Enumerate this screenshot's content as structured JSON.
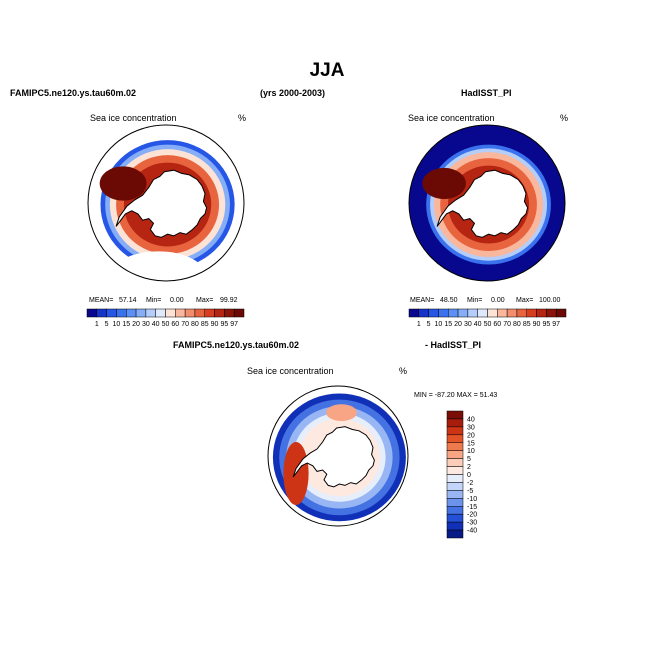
{
  "page": {
    "title": "JJA",
    "left_model": "FAMIPC5.ne120.ys.tau60m.02",
    "period": "(yrs 2000-2003)",
    "right_model": "HadISST_PI",
    "diff_left": "FAMIPC5.ne120.ys.tau60m.02",
    "diff_right": "- HadISST_PI"
  },
  "chart_data": [
    {
      "type": "heatmap",
      "id": "model",
      "title": "Sea ice concentration",
      "units": "%",
      "projection": "south-polar-stereographic",
      "stats": {
        "mean": "57.14",
        "min": "0.00",
        "max": "99.92"
      },
      "stats_labels": {
        "mean": "MEAN=",
        "min": "Min=",
        "max": "Max="
      },
      "colorbar": {
        "orientation": "horizontal",
        "levels": [
          "1",
          "5",
          "10",
          "15",
          "20",
          "30",
          "40",
          "50",
          "60",
          "70",
          "80",
          "85",
          "90",
          "95",
          "97"
        ],
        "colors": [
          "#08088f",
          "#1734c8",
          "#2656e6",
          "#3a72ee",
          "#5c90f4",
          "#86aef7",
          "#b4cdf9",
          "#dfe9fc",
          "#fde2d6",
          "#f9b89e",
          "#f28e6e",
          "#e8643f",
          "#d63e1f",
          "#b62412",
          "#8a1409",
          "#6b0a05"
        ]
      }
    },
    {
      "type": "heatmap",
      "id": "obs",
      "title": "Sea ice concentration",
      "units": "%",
      "projection": "south-polar-stereographic",
      "stats": {
        "mean": "48.50",
        "min": "0.00",
        "max": "100.00"
      },
      "stats_labels": {
        "mean": "MEAN=",
        "min": "Min=",
        "max": "Max="
      },
      "colorbar": {
        "orientation": "horizontal",
        "levels": [
          "1",
          "5",
          "10",
          "15",
          "20",
          "30",
          "40",
          "50",
          "60",
          "70",
          "80",
          "85",
          "90",
          "95",
          "97"
        ],
        "colors": [
          "#08088f",
          "#1734c8",
          "#2656e6",
          "#3a72ee",
          "#5c90f4",
          "#86aef7",
          "#b4cdf9",
          "#dfe9fc",
          "#fde2d6",
          "#f9b89e",
          "#f28e6e",
          "#e8643f",
          "#d63e1f",
          "#b62412",
          "#8a1409",
          "#6b0a05"
        ]
      }
    },
    {
      "type": "heatmap",
      "id": "diff",
      "title": "Sea ice concentration",
      "units": "%",
      "projection": "south-polar-stereographic",
      "range_label": "MIN = -87.20  MAX =  51.43",
      "colorbar": {
        "orientation": "vertical",
        "levels": [
          "40",
          "30",
          "20",
          "15",
          "10",
          "5",
          "2",
          "0",
          "-2",
          "-5",
          "-10",
          "-15",
          "-20",
          "-30",
          "-40"
        ],
        "colors": [
          "#7a0d06",
          "#a81c0c",
          "#cc3415",
          "#e25427",
          "#ef7a4e",
          "#f7a585",
          "#fbcdb8",
          "#fde9e0",
          "#e6eefc",
          "#c3d5f8",
          "#98b6f3",
          "#6c93ec",
          "#4472e3",
          "#2350d6",
          "#1130b8",
          "#071a86"
        ]
      }
    }
  ]
}
